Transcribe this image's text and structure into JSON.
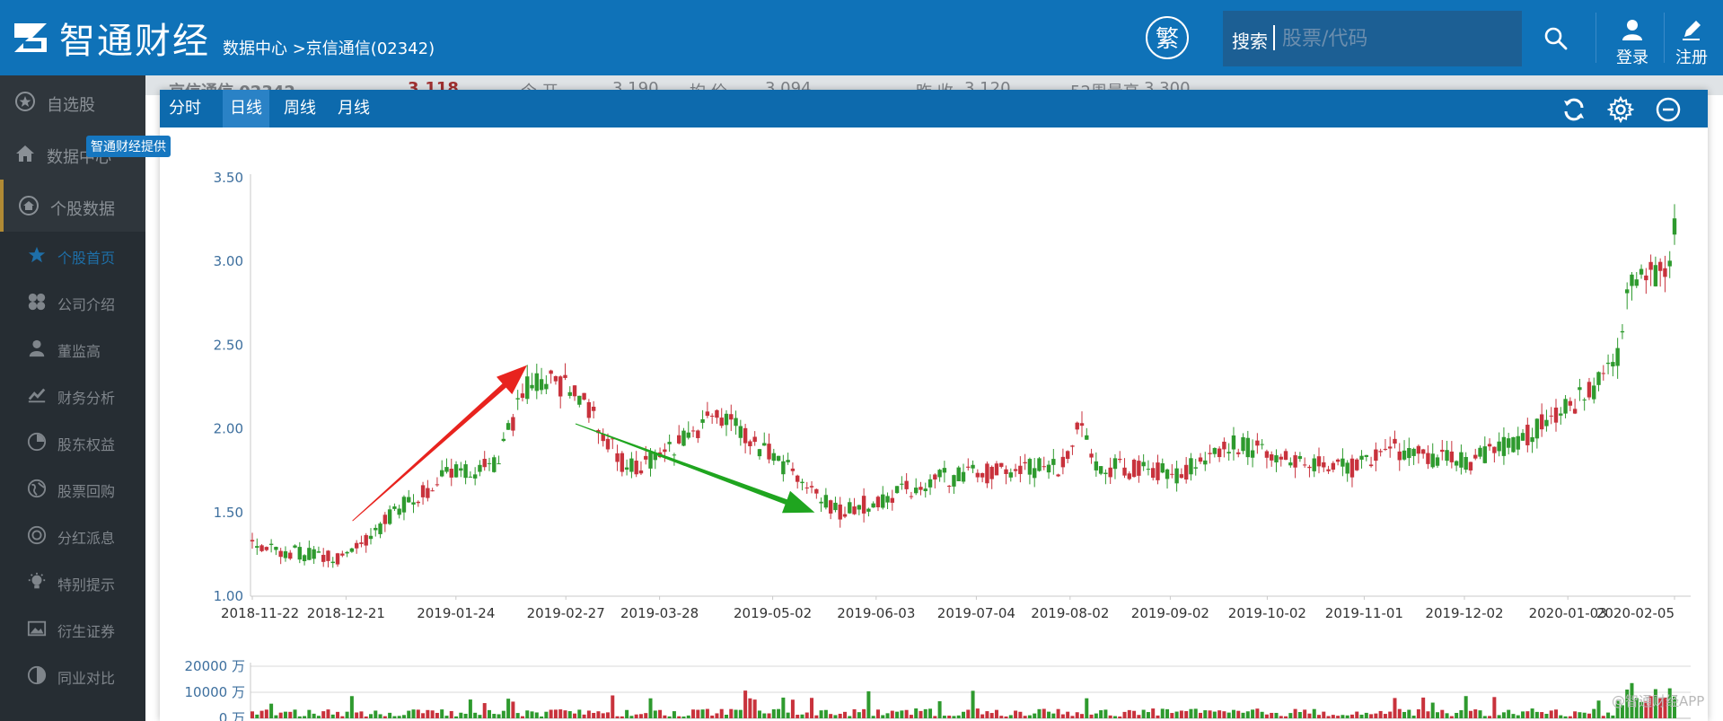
{
  "header": {
    "logo_text": "智通财经",
    "breadcrumb": "数据中心 >京信通信(02342)",
    "trad_button": "繁",
    "search_label": "搜索",
    "search_placeholder": "股票/代码",
    "login": "登录",
    "register": "注册"
  },
  "sidebar": {
    "top_items": [
      {
        "label": "自选股",
        "icon": "star-circle-icon"
      },
      {
        "label": "数据中心",
        "icon": "home-icon"
      },
      {
        "label": "个股数据",
        "icon": "home-circle-icon"
      }
    ],
    "sub_items": [
      {
        "label": "个股首页",
        "icon": "star-icon"
      },
      {
        "label": "公司介绍",
        "icon": "grid-icon"
      },
      {
        "label": "董监高",
        "icon": "person-icon"
      },
      {
        "label": "财务分析",
        "icon": "chart-icon"
      },
      {
        "label": "股东权益",
        "icon": "pie-icon"
      },
      {
        "label": "股票回购",
        "icon": "globe-icon"
      },
      {
        "label": "分红派息",
        "icon": "coin-icon"
      },
      {
        "label": "特别提示",
        "icon": "bulb-icon"
      },
      {
        "label": "衍生证券",
        "icon": "picture-icon"
      },
      {
        "label": "同业对比",
        "icon": "half-circle-icon"
      }
    ]
  },
  "behind_header": [
    "京信通信 02342",
    "3.118",
    "今 开",
    "3.190",
    "均 价",
    "3.094",
    "昨 收",
    "3.120",
    "52周最高",
    "3.300"
  ],
  "panel": {
    "tabs": [
      "分时",
      "日线",
      "周线",
      "月线"
    ],
    "active_tab": "日线",
    "watermark": "智通财经提供"
  },
  "colors": {
    "up": "#c8323c",
    "down": "#2e9a2e",
    "header": "#0f72b8",
    "toolbar": "#0d6aad",
    "axis_text": "#3d6f9e"
  },
  "chart_data": {
    "type": "candlestick",
    "ylim": [
      1.0,
      3.5
    ],
    "yticks": [
      "1.00",
      "1.50",
      "2.00",
      "2.50",
      "3.00",
      "3.50"
    ],
    "xticks": [
      "2018-11-22",
      "2018-12-21",
      "2019-01-24",
      "2019-02-27",
      "2019-03-28",
      "2019-05-02",
      "2019-06-03",
      "2019-07-04",
      "2019-08-02",
      "2019-09-02",
      "2019-10-02",
      "2019-11-01",
      "2019-12-02",
      "2020-01-03",
      "2020-02-05"
    ],
    "price_anchors": [
      {
        "d": "2018-11-22",
        "v": 1.3
      },
      {
        "d": "2018-12-05",
        "v": 1.26
      },
      {
        "d": "2018-12-21",
        "v": 1.22
      },
      {
        "d": "2019-01-08",
        "v": 1.55
      },
      {
        "d": "2019-01-24",
        "v": 1.75
      },
      {
        "d": "2019-02-05",
        "v": 1.78
      },
      {
        "d": "2019-02-15",
        "v": 2.25
      },
      {
        "d": "2019-02-22",
        "v": 2.3
      },
      {
        "d": "2019-03-04",
        "v": 2.2
      },
      {
        "d": "2019-03-18",
        "v": 1.75
      },
      {
        "d": "2019-04-01",
        "v": 1.88
      },
      {
        "d": "2019-04-15",
        "v": 2.1
      },
      {
        "d": "2019-04-25",
        "v": 1.95
      },
      {
        "d": "2019-05-10",
        "v": 1.7
      },
      {
        "d": "2019-05-22",
        "v": 1.5
      },
      {
        "d": "2019-06-05",
        "v": 1.58
      },
      {
        "d": "2019-06-20",
        "v": 1.7
      },
      {
        "d": "2019-07-15",
        "v": 1.75
      },
      {
        "d": "2019-07-31",
        "v": 1.78
      },
      {
        "d": "2019-08-05",
        "v": 2.05
      },
      {
        "d": "2019-08-10",
        "v": 1.78
      },
      {
        "d": "2019-08-25",
        "v": 1.75
      },
      {
        "d": "2019-09-05",
        "v": 1.72
      },
      {
        "d": "2019-09-20",
        "v": 1.92
      },
      {
        "d": "2019-10-10",
        "v": 1.82
      },
      {
        "d": "2019-10-30",
        "v": 1.76
      },
      {
        "d": "2019-11-08",
        "v": 1.9
      },
      {
        "d": "2019-11-20",
        "v": 1.83
      },
      {
        "d": "2019-12-05",
        "v": 1.81
      },
      {
        "d": "2019-12-20",
        "v": 1.95
      },
      {
        "d": "2020-01-08",
        "v": 2.2
      },
      {
        "d": "2020-01-15",
        "v": 2.3
      },
      {
        "d": "2020-01-19",
        "v": 2.48
      },
      {
        "d": "2020-01-21",
        "v": 2.85
      },
      {
        "d": "2020-02-03",
        "v": 2.95
      },
      {
        "d": "2020-02-05",
        "v": 3.15
      }
    ],
    "volume": {
      "ylabels": [
        "20000 万",
        "10000 万",
        "0 万"
      ],
      "ylim": [
        0,
        20000
      ]
    },
    "annotations": [
      {
        "type": "arrow",
        "color": "red",
        "from": {
          "d": "2018-12-23",
          "v": 1.45
        },
        "to": {
          "d": "2019-02-15",
          "v": 2.38
        }
      },
      {
        "type": "arrow",
        "color": "green",
        "from": {
          "d": "2019-03-02",
          "v": 2.03
        },
        "to": {
          "d": "2019-05-15",
          "v": 1.5
        }
      }
    ]
  },
  "credit": "@智通财经APP"
}
